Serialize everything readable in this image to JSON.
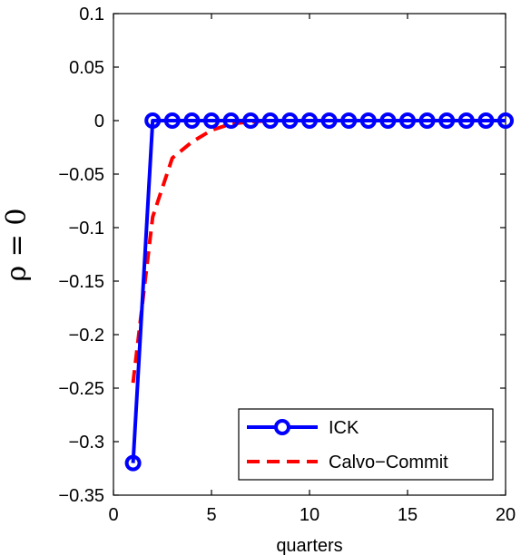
{
  "chart_data": {
    "type": "line",
    "title": "",
    "xlabel": "quarters",
    "ylabel": "ρ = 0",
    "xlim": [
      0,
      20
    ],
    "ylim": [
      -0.35,
      0.1
    ],
    "xticks": [
      0,
      5,
      10,
      15,
      20
    ],
    "yticks": [
      -0.35,
      -0.3,
      -0.25,
      -0.2,
      -0.15,
      -0.1,
      -0.05,
      0,
      0.05,
      0.1
    ],
    "xtick_labels": [
      "0",
      "5",
      "10",
      "15",
      "20"
    ],
    "ytick_labels": [
      "−0.35",
      "−0.3",
      "−0.25",
      "−0.2",
      "−0.15",
      "−0.1",
      "−0.05",
      "0",
      "0.05",
      "0.1"
    ],
    "grid": false,
    "legend_position": "bottom-right",
    "series": [
      {
        "name": "ICK",
        "color": "#0000ff",
        "style": "solid",
        "marker": "circle",
        "x": [
          1,
          2,
          3,
          4,
          5,
          6,
          7,
          8,
          9,
          10,
          11,
          12,
          13,
          14,
          15,
          16,
          17,
          18,
          19,
          20
        ],
        "values": [
          -0.32,
          0,
          0,
          0,
          0,
          0,
          0,
          0,
          0,
          0,
          0,
          0,
          0,
          0,
          0,
          0,
          0,
          0,
          0,
          0
        ]
      },
      {
        "name": "Calvo−Commit",
        "color": "#ff0000",
        "style": "dashed",
        "marker": "none",
        "x": [
          1,
          2,
          3,
          4,
          5,
          6,
          7,
          8,
          9,
          10,
          11,
          12,
          13,
          14,
          15,
          16,
          17,
          18,
          19,
          20
        ],
        "values": [
          -0.245,
          -0.09,
          -0.035,
          -0.02,
          -0.009,
          -0.003,
          -0.001,
          0,
          0,
          0,
          0,
          0,
          0,
          0,
          0,
          0,
          0,
          0,
          0,
          0
        ]
      }
    ]
  }
}
